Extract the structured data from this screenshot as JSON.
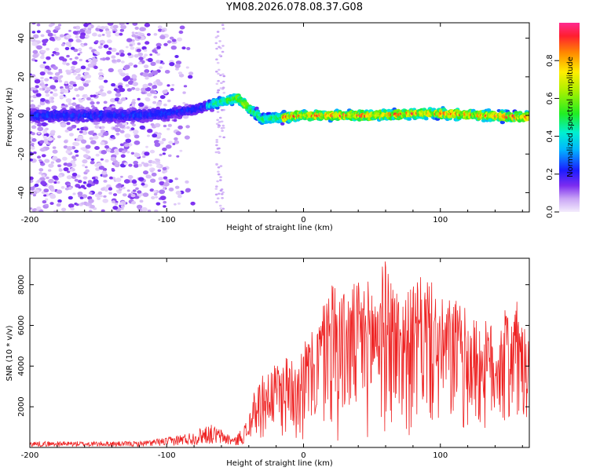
{
  "title": "YM08.2026.078.08.37.G08",
  "chart_data": [
    {
      "type": "heatmap",
      "xlabel": "Height of straight line (km)",
      "ylabel": "Frequency (Hz)",
      "xlim": [
        -200,
        165
      ],
      "ylim": [
        -50,
        48
      ],
      "xticks": [
        -200,
        -100,
        0,
        100
      ],
      "yticks": [
        -40,
        -20,
        0,
        20,
        40
      ],
      "colorbar": {
        "label": "Normalized spectral amplitude",
        "range": [
          0,
          1
        ],
        "ticks": [
          0.0,
          0.2,
          0.4,
          0.6,
          0.8
        ],
        "tick_labels": [
          "0.0",
          "0.2",
          "0.4",
          "0.6",
          "0.8"
        ]
      },
      "ridge": {
        "x": [
          -200,
          -160,
          -120,
          -100,
          -80,
          -60,
          -48,
          -40,
          -30,
          -15,
          0,
          20,
          50,
          80,
          100,
          130,
          165
        ],
        "freq": [
          0,
          0,
          0,
          1,
          3,
          7,
          9,
          4,
          -2,
          -1,
          0,
          0,
          0,
          1,
          1,
          0,
          -1
        ]
      }
    },
    {
      "type": "line",
      "xlabel": "Height of straight line (km)",
      "ylabel": "SNR (10 * v/v)",
      "xlim": [
        -200,
        165
      ],
      "ylim": [
        0,
        9300
      ],
      "xticks": [
        -200,
        -100,
        0,
        100
      ],
      "yticks": [
        2000,
        4000,
        6000,
        8000
      ],
      "series": [
        {
          "name": "SNR",
          "color": "#ee2222",
          "envelope_x": [
            -200,
            -120,
            -100,
            -80,
            -70,
            -60,
            -50,
            -40,
            -35,
            -30,
            -20,
            -10,
            0,
            10,
            20,
            30,
            40,
            50,
            60,
            70,
            80,
            90,
            100,
            110,
            120,
            130,
            140,
            150,
            155,
            160,
            165
          ],
          "envelope_y": [
            300,
            300,
            500,
            800,
            1200,
            900,
            500,
            1500,
            2800,
            3500,
            4000,
            4500,
            5000,
            6000,
            8500,
            7500,
            8000,
            8000,
            9200,
            7500,
            7800,
            8500,
            7000,
            7300,
            6500,
            6000,
            6000,
            7000,
            7300,
            6000,
            5000
          ]
        }
      ]
    }
  ]
}
